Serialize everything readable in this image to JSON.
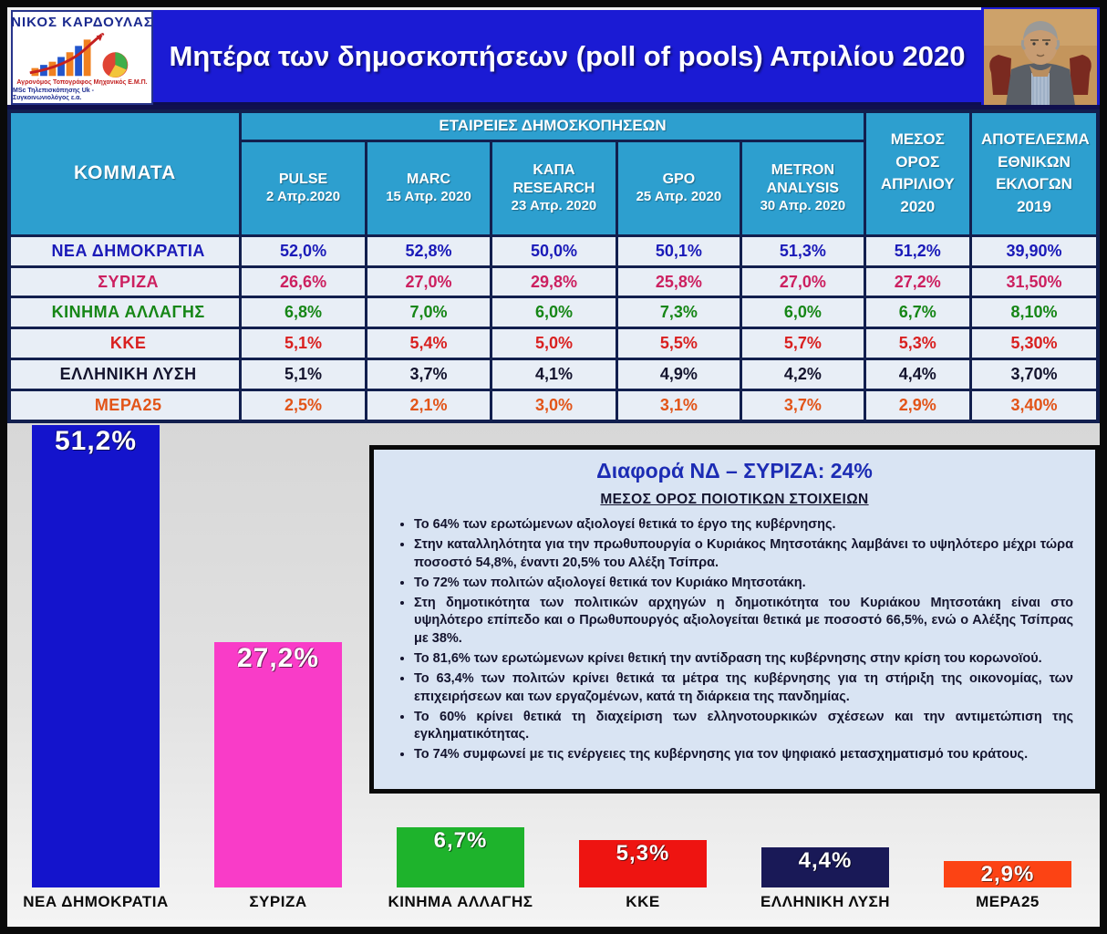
{
  "logo": {
    "name": "ΝΙΚΟΣ  ΚΑΡΔΟΥΛΑΣ",
    "subtitle_line1": "Αγρονόμος Τοπογράφος Μηχανικός Ε.Μ.Π.",
    "subtitle_line2": "MSc Τηλεπισκόπησης Uk - Συγκοινωνιολόγος ε.α."
  },
  "header": {
    "title": "Μητέρα των δημοσκοπήσεων  (poll of pools) Απριλίου 2020"
  },
  "table": {
    "corner_label": "ΚΟΜΜΑΤΑ",
    "group_header": "ΕΤΑΙΡΕΙΕΣ ΔΗΜΟΣΚΟΠΗΣΕΩΝ",
    "pollsters": [
      {
        "name": "PULSE",
        "date": "2 Απρ.2020"
      },
      {
        "name": "MARC",
        "date": "15 Απρ. 2020"
      },
      {
        "name": "ΚΑΠΑ RESEARCH",
        "date": "23 Απρ. 2020"
      },
      {
        "name": "GPO",
        "date": "25 Απρ. 2020"
      },
      {
        "name": "METRON ANALYSIS",
        "date": "30 Απρ. 2020"
      }
    ],
    "avg_header": "ΜΕΣΟΣ ΟΡΟΣ ΑΠΡΙΛΙΟΥ 2020",
    "result_header": "ΑΠΟΤΕΛΕΣΜΑ ΕΘΝΙΚΩΝ ΕΚΛΟΓΩΝ 2019",
    "rows": [
      {
        "party": "ΝΕΑ ΔΗΜΟΚΡΑΤΙΑ",
        "color": "#1a1ab8",
        "values": [
          "52,0%",
          "52,8%",
          "50,0%",
          "50,1%",
          "51,3%"
        ],
        "avg": "51,2%",
        "result": "39,90%"
      },
      {
        "party": "ΣΥΡΙΖΑ",
        "color": "#cc2060",
        "values": [
          "26,6%",
          "27,0%",
          "29,8%",
          "25,8%",
          "27,0%"
        ],
        "avg": "27,2%",
        "result": "31,50%"
      },
      {
        "party": "ΚΙΝΗΜΑ ΑΛΛΑΓΗΣ",
        "color": "#168616",
        "values": [
          "6,8%",
          "7,0%",
          "6,0%",
          "7,3%",
          "6,0%"
        ],
        "avg": "6,7%",
        "result": "8,10%"
      },
      {
        "party": "ΚΚΕ",
        "color": "#d92020",
        "values": [
          "5,1%",
          "5,4%",
          "5,0%",
          "5,5%",
          "5,7%"
        ],
        "avg": "5,3%",
        "result": "5,30%"
      },
      {
        "party": "ΕΛΛΗΝΙΚΗ ΛΥΣΗ",
        "color": "#14142e",
        "values": [
          "5,1%",
          "3,7%",
          "4,1%",
          "4,9%",
          "4,2%"
        ],
        "avg": "4,4%",
        "result": "3,70%"
      },
      {
        "party": "ΜΕΡΑ25",
        "color": "#e25418",
        "values": [
          "2,5%",
          "2,1%",
          "3,0%",
          "3,1%",
          "3,7%"
        ],
        "avg": "2,9%",
        "result": "3,40%"
      }
    ]
  },
  "chart_data": {
    "type": "bar",
    "title": "",
    "categories": [
      "ΝΕΑ ΔΗΜΟΚΡΑΤΙΑ",
      "ΣΥΡΙΖΑ",
      "ΚΙΝΗΜΑ ΑΛΛΑΓΗΣ",
      "ΚΚΕ",
      "ΕΛΛΗΝΙΚΗ ΛΥΣΗ",
      "ΜΕΡΑ25"
    ],
    "values": [
      51.2,
      27.2,
      6.7,
      5.3,
      4.4,
      2.9
    ],
    "value_labels": [
      "51,2%",
      "27,2%",
      "6,7%",
      "5,3%",
      "4,4%",
      "2,9%"
    ],
    "colors": [
      "#1414cc",
      "#f93cc8",
      "#1eb32c",
      "#ee1411",
      "#191957",
      "#fc4314"
    ],
    "xlabel": "",
    "ylabel": "",
    "ylim": [
      0,
      51.2
    ],
    "grid": false,
    "legend": false
  },
  "infobox": {
    "title": "Διαφορά ΝΔ – ΣΥΡΙΖΑ: 24%",
    "subtitle": "ΜΕΣΟΣ ΟΡΟΣ ΠΟΙΟΤΙΚΩΝ ΣΤΟΙΧΕΙΩΝ",
    "bullets": [
      "Το 64% των ερωτώμενων αξιολογεί θετικά το έργο της κυβέρνησης.",
      "Στην καταλληλότητα για την πρωθυπουργία ο Κυριάκος Μητσοτάκης λαμβάνει το υψηλότερο μέχρι τώρα ποσοστό 54,8%, έναντι 20,5% του Αλέξη Τσίπρα.",
      "Το 72% των πολιτών αξιολογεί θετικά τον Κυριάκο Μητσοτάκη.",
      "Στη δημοτικότητα των πολιτικών αρχηγών η δημοτικότητα του Κυριάκου Μητσοτάκη είναι στο υψηλότερο επίπεδο και ο Πρωθυπουργός αξιολογείται θετικά με ποσοστό 66,5%, ενώ ο Αλέξης Τσίπρας με 38%.",
      "Το 81,6% των ερωτώμενων κρίνει θετική την αντίδραση της κυβέρνησης στην κρίση του κορωνοϊού.",
      "Το 63,4% των πολιτών κρίνει θετικά τα μέτρα της κυβέρνησης για τη στήριξη της οικονομίας, των επιχειρήσεων και των εργαζομένων, κατά τη διάρκεια της πανδημίας.",
      "Το 60% κρίνει θετικά τη διαχείριση των ελληνοτουρκικών σχέσεων και την αντιμετώπιση της εγκληματικότητας.",
      "Το 74% συμφωνεί με τις ενέργειες της κυβέρνησης για τον ψηφιακό μετασχηματισμό του κράτους."
    ]
  }
}
